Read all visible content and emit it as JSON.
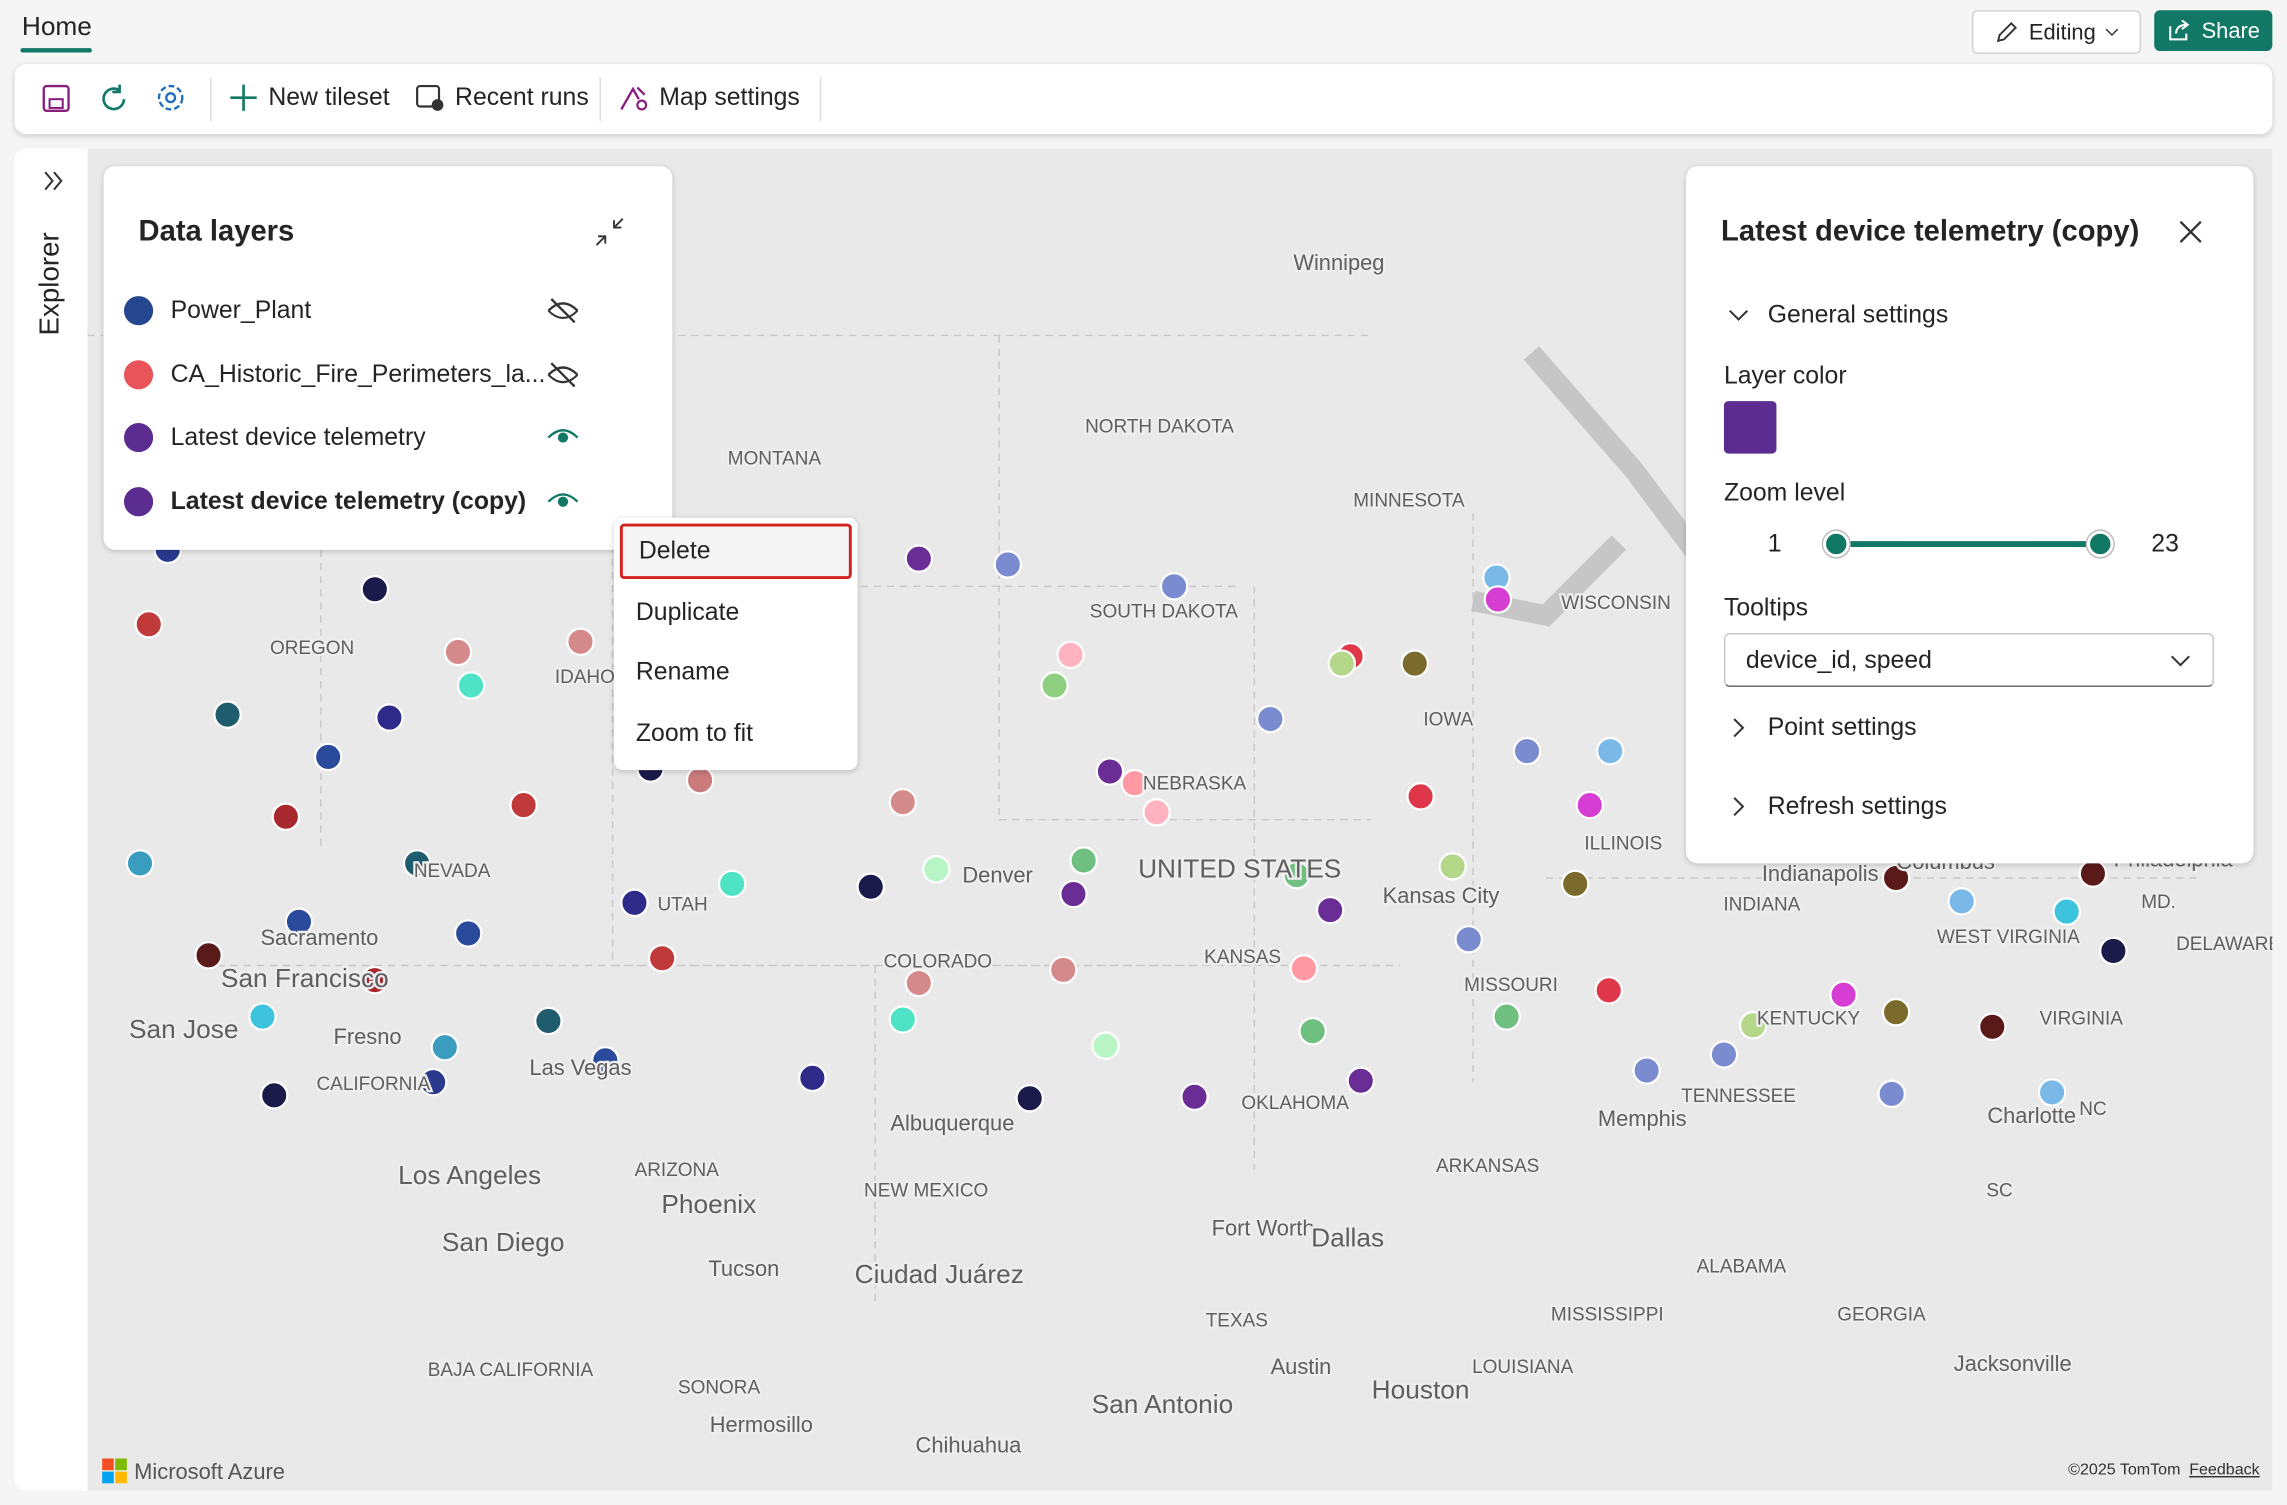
{
  "header": {
    "tab": "Home",
    "editing": "Editing",
    "share": "Share"
  },
  "toolbar": {
    "new_tileset": "New tileset",
    "recent_runs": "Recent runs",
    "map_settings": "Map settings"
  },
  "explorer": {
    "label": "Explorer"
  },
  "data_layers": {
    "title": "Data layers",
    "layers": [
      {
        "name": "Power_Plant",
        "color": "#24478f",
        "visible": false,
        "selected": false
      },
      {
        "name": "CA_Historic_Fire_Perimeters_la...",
        "color": "#e8545a",
        "visible": false,
        "selected": false
      },
      {
        "name": "Latest device telemetry",
        "color": "#5c2d91",
        "visible": true,
        "selected": false
      },
      {
        "name": "Latest device telemetry (copy)",
        "color": "#5c2d91",
        "visible": true,
        "selected": true
      }
    ]
  },
  "context_menu": {
    "items": [
      "Delete",
      "Duplicate",
      "Rename",
      "Zoom to fit"
    ]
  },
  "layer_panel": {
    "title": "Latest device telemetry (copy)",
    "general_settings": "General settings",
    "layer_color_label": "Layer color",
    "layer_color": "#5c2d91",
    "zoom_label": "Zoom level",
    "zoom_min": 1,
    "zoom_max": 23,
    "tooltips_label": "Tooltips",
    "tooltips_value": "device_id, speed",
    "point_settings": "Point settings",
    "refresh_settings": "Refresh settings"
  },
  "map": {
    "labels": [
      "Winnipeg",
      "NORTH DAKOTA",
      "MONTANA",
      "MINNESOTA",
      "SOUTH DAKOTA",
      "WISCONSIN",
      "OREGON",
      "IDAHO",
      "IOWA",
      "NEBRASKA",
      "ILLINOIS",
      "NEVADA",
      "Denver",
      "UNITED STATES",
      "Kansas City",
      "Indianapolis",
      "Columbus",
      "Philadelphia",
      "Sacramento",
      "UTAH",
      "INDIANA",
      "MD.",
      "WEST VIRGINIA",
      "DELAWARE",
      "COLORADO",
      "KANSAS",
      "San Francisco",
      "MISSOURI",
      "KENTUCKY",
      "VIRGINIA",
      "San Jose",
      "Fresno",
      "CALIFORNIA",
      "Las Vegas",
      "OKLAHOMA",
      "TENNESSEE",
      "NC",
      "Charlotte",
      "Memphis",
      "Albuquerque",
      "ARIZONA",
      "ARKANSAS",
      "Los Angeles",
      "NEW MEXICO",
      "Phoenix",
      "SC",
      "Fort Worth",
      "Dallas",
      "San Diego",
      "Ciudad Juárez",
      "ALABAMA",
      "Tucson",
      "TEXAS",
      "MISSISSIPPI",
      "GEORGIA",
      "BAJA CALIFORNIA",
      "Austin",
      "LOUISIANA",
      "Jacksonville",
      "SONORA",
      "Houston",
      "San Antonio",
      "Hermosillo",
      "Chihuahua"
    ],
    "brand": "Microsoft Azure",
    "copyright": "©2025 TomTom",
    "feedback": "Feedback"
  }
}
